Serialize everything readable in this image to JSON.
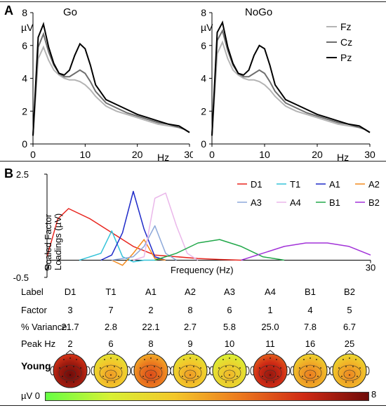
{
  "panelA": {
    "letter": "A",
    "yunit": "µV",
    "xunit": "Hz",
    "legend": [
      "Fz",
      "Cz",
      "Pz"
    ],
    "colors": {
      "Fz": "#b4b4b4",
      "Cz": "#6e6e6e",
      "Pz": "#000000"
    }
  },
  "panelB": {
    "letter": "B",
    "ylabel": "Scaled Factor Loadings (µV)",
    "xlabel": "Frequency (Hz)"
  },
  "chart_data": [
    {
      "type": "line",
      "title": "Go",
      "xlabel": "Hz",
      "ylabel": "µV",
      "xlim": [
        0,
        30
      ],
      "ylim": [
        0,
        8
      ],
      "xticks": [
        0,
        10,
        20,
        30
      ],
      "yticks": [
        0,
        2,
        4,
        6,
        8
      ],
      "x": [
        0,
        1,
        2,
        3,
        4,
        5,
        6,
        7,
        8,
        9,
        10,
        11,
        12,
        14,
        16,
        18,
        20,
        22,
        24,
        26,
        28,
        29,
        30
      ],
      "series": [
        {
          "name": "Fz",
          "values": [
            0.5,
            5.2,
            5.9,
            5.1,
            4.5,
            4.2,
            4.0,
            3.9,
            3.9,
            3.8,
            3.6,
            3.3,
            2.9,
            2.3,
            2.0,
            1.8,
            1.6,
            1.4,
            1.2,
            1.1,
            1.0,
            0.9,
            0.7
          ]
        },
        {
          "name": "Cz",
          "values": [
            0.5,
            5.9,
            6.7,
            5.6,
            4.8,
            4.3,
            4.1,
            4.1,
            4.3,
            4.5,
            4.3,
            3.8,
            3.2,
            2.5,
            2.2,
            1.9,
            1.7,
            1.5,
            1.3,
            1.2,
            1.0,
            0.9,
            0.7
          ]
        },
        {
          "name": "Pz",
          "values": [
            0.5,
            6.5,
            7.3,
            5.9,
            4.9,
            4.3,
            4.2,
            4.5,
            5.4,
            6.1,
            5.8,
            4.8,
            3.6,
            2.7,
            2.4,
            2.1,
            1.8,
            1.6,
            1.4,
            1.2,
            1.1,
            0.9,
            0.7
          ]
        }
      ]
    },
    {
      "type": "line",
      "title": "NoGo",
      "xlabel": "Hz",
      "ylabel": "µV",
      "xlim": [
        0,
        30
      ],
      "ylim": [
        0,
        8
      ],
      "xticks": [
        0,
        10,
        20,
        30
      ],
      "yticks": [
        0,
        2,
        4,
        6,
        8
      ],
      "x": [
        0,
        1,
        2,
        3,
        4,
        5,
        6,
        7,
        8,
        9,
        10,
        11,
        12,
        14,
        16,
        18,
        20,
        22,
        24,
        26,
        28,
        29,
        30
      ],
      "series": [
        {
          "name": "Fz",
          "values": [
            0.5,
            5.5,
            6.2,
            5.2,
            4.5,
            4.2,
            4.0,
            3.9,
            3.9,
            3.8,
            3.6,
            3.3,
            2.9,
            2.3,
            2.0,
            1.8,
            1.6,
            1.4,
            1.2,
            1.1,
            1.0,
            0.9,
            0.7
          ]
        },
        {
          "name": "Cz",
          "values": [
            0.5,
            6.3,
            6.9,
            5.7,
            4.8,
            4.3,
            4.1,
            4.1,
            4.3,
            4.5,
            4.3,
            3.8,
            3.2,
            2.5,
            2.2,
            1.9,
            1.7,
            1.5,
            1.3,
            1.2,
            1.0,
            0.9,
            0.7
          ]
        },
        {
          "name": "Pz",
          "values": [
            0.5,
            6.8,
            7.4,
            5.9,
            4.9,
            4.3,
            4.2,
            4.5,
            5.4,
            6.0,
            5.8,
            4.8,
            3.6,
            2.7,
            2.4,
            2.1,
            1.8,
            1.6,
            1.4,
            1.2,
            1.1,
            0.9,
            0.7
          ]
        }
      ]
    },
    {
      "type": "line",
      "xlabel": "Frequency (Hz)",
      "ylabel": "Scaled Factor Loadings (µV)",
      "xlim": [
        0,
        30
      ],
      "ylim": [
        -0.5,
        2.5
      ],
      "xticks": [
        0,
        30
      ],
      "yticks": [
        -0.5,
        2.5
      ],
      "legend_position": "top-right",
      "series": [
        {
          "name": "D1",
          "color": "#e8261f",
          "x": [
            0,
            1,
            2,
            4,
            6,
            8,
            10,
            12,
            14,
            16,
            18
          ],
          "values": [
            0.1,
            1.2,
            1.5,
            1.2,
            0.8,
            0.4,
            0.15,
            0.1,
            0.05,
            0.02,
            0.0
          ]
        },
        {
          "name": "T1",
          "color": "#35c3d9",
          "x": [
            3,
            5,
            6,
            7,
            8,
            9,
            10
          ],
          "values": [
            0.0,
            0.2,
            0.85,
            0.1,
            -0.05,
            0.0,
            0.0
          ]
        },
        {
          "name": "A1",
          "color": "#1f2bc9",
          "x": [
            5,
            6,
            7,
            8,
            9,
            10,
            11
          ],
          "values": [
            0.0,
            0.15,
            0.8,
            2.0,
            0.9,
            0.1,
            0.0
          ]
        },
        {
          "name": "A2",
          "color": "#f28a1e",
          "x": [
            6,
            7,
            8,
            9,
            10,
            11
          ],
          "values": [
            0.0,
            -0.15,
            0.2,
            0.6,
            0.05,
            0.0
          ]
        },
        {
          "name": "A3",
          "color": "#8ea9da",
          "x": [
            6,
            8,
            9,
            10,
            11,
            12
          ],
          "values": [
            0.0,
            0.1,
            0.4,
            1.0,
            0.2,
            0.0
          ]
        },
        {
          "name": "A4",
          "color": "#eab7ea",
          "x": [
            8,
            9,
            10,
            11,
            12,
            13,
            14
          ],
          "values": [
            0.0,
            0.1,
            1.8,
            1.95,
            1.0,
            0.2,
            0.0
          ]
        },
        {
          "name": "B1",
          "color": "#22a84a",
          "x": [
            10,
            12,
            14,
            16,
            18,
            20,
            22
          ],
          "values": [
            0.0,
            0.2,
            0.5,
            0.6,
            0.4,
            0.1,
            0.0
          ]
        },
        {
          "name": "B2",
          "color": "#a233d8",
          "x": [
            18,
            20,
            22,
            24,
            26,
            28,
            30
          ],
          "values": [
            0.0,
            0.2,
            0.4,
            0.5,
            0.5,
            0.4,
            0.15
          ]
        }
      ]
    },
    {
      "type": "table",
      "row_labels": [
        "Label",
        "Factor",
        "% Variance",
        "Peak Hz"
      ],
      "columns": [
        "D1",
        "T1",
        "A1",
        "A2",
        "A3",
        "A4",
        "B1",
        "B2"
      ],
      "factor": [
        "3",
        "7",
        "2",
        "8",
        "6",
        "1",
        "4",
        "5"
      ],
      "variance": [
        "21.7",
        "2.8",
        "22.1",
        "2.7",
        "5.8",
        "25.0",
        "7.8",
        "6.7"
      ],
      "peak": [
        "2",
        "6",
        "8",
        "9",
        "10",
        "11",
        "16",
        "25"
      ]
    }
  ],
  "topo": {
    "group": "Young",
    "levels": [
      7.2,
      3.2,
      4.8,
      3.2,
      2.6,
      6.4,
      3.8,
      3.6
    ]
  },
  "colorbar": {
    "label": "µV",
    "min": "0",
    "max": "8"
  }
}
